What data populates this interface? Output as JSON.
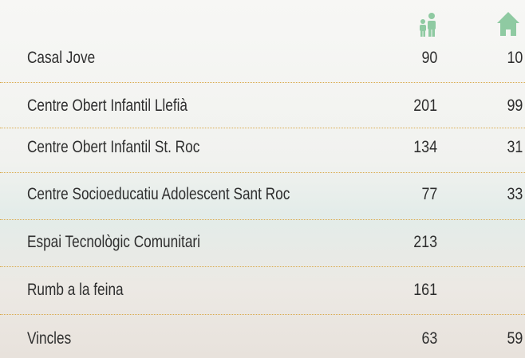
{
  "table": {
    "rows": [
      [
        "Casal Jove",
        90,
        10
      ],
      [
        "Centre Obert Infantil Llefià",
        201,
        99
      ],
      [
        "Centre Obert Infantil St. Roc",
        134,
        31
      ],
      [
        "Centre Socioeducatiu Adolescent Sant Roc",
        77,
        33
      ],
      [
        "Espai Tecnològic Comunitari",
        213,
        null
      ],
      [
        "Rumb a la feina",
        161,
        null
      ],
      [
        "Vincles",
        63,
        59
      ]
    ]
  }
}
